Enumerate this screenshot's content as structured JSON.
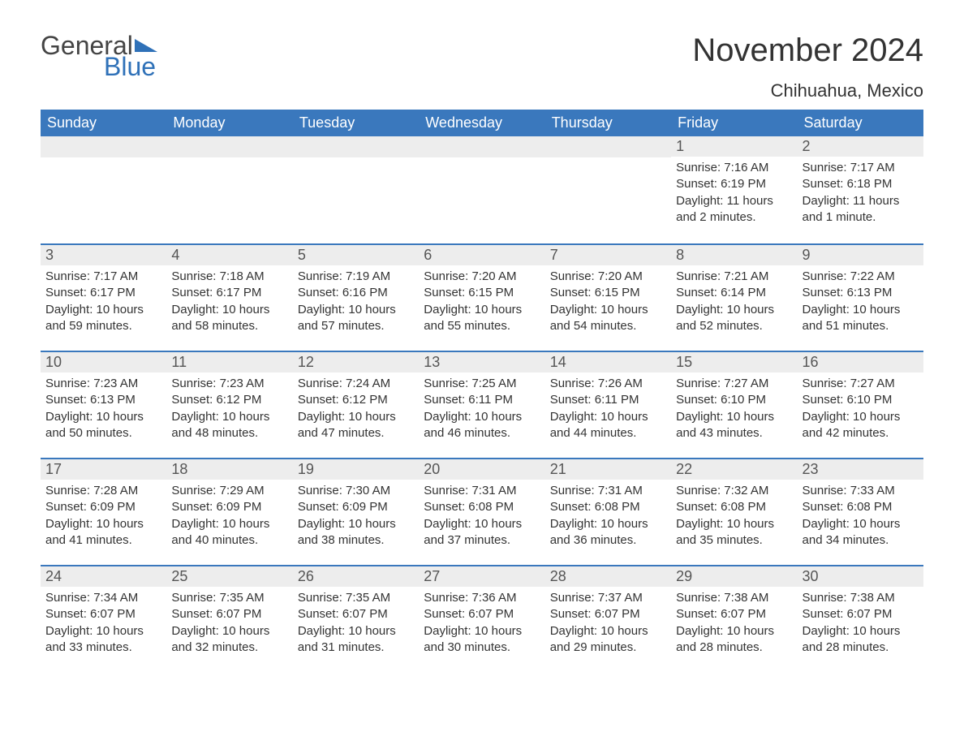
{
  "logo": {
    "general": "General",
    "blue": "Blue",
    "flag_color": "#2f71b8"
  },
  "title": "November 2024",
  "location": "Chihuahua, Mexico",
  "colors": {
    "header_bg": "#3a78bd",
    "header_text": "#ffffff",
    "row_stripe": "#ededed",
    "divider": "#3a78bd",
    "text": "#333333",
    "logo_gray": "#444444",
    "logo_blue": "#2f71b8",
    "page_bg": "#ffffff"
  },
  "weekdays": [
    "Sunday",
    "Monday",
    "Tuesday",
    "Wednesday",
    "Thursday",
    "Friday",
    "Saturday"
  ],
  "weeks": [
    [
      null,
      null,
      null,
      null,
      null,
      {
        "n": "1",
        "sunrise": "Sunrise: 7:16 AM",
        "sunset": "Sunset: 6:19 PM",
        "day": "Daylight: 11 hours and 2 minutes."
      },
      {
        "n": "2",
        "sunrise": "Sunrise: 7:17 AM",
        "sunset": "Sunset: 6:18 PM",
        "day": "Daylight: 11 hours and 1 minute."
      }
    ],
    [
      {
        "n": "3",
        "sunrise": "Sunrise: 7:17 AM",
        "sunset": "Sunset: 6:17 PM",
        "day": "Daylight: 10 hours and 59 minutes."
      },
      {
        "n": "4",
        "sunrise": "Sunrise: 7:18 AM",
        "sunset": "Sunset: 6:17 PM",
        "day": "Daylight: 10 hours and 58 minutes."
      },
      {
        "n": "5",
        "sunrise": "Sunrise: 7:19 AM",
        "sunset": "Sunset: 6:16 PM",
        "day": "Daylight: 10 hours and 57 minutes."
      },
      {
        "n": "6",
        "sunrise": "Sunrise: 7:20 AM",
        "sunset": "Sunset: 6:15 PM",
        "day": "Daylight: 10 hours and 55 minutes."
      },
      {
        "n": "7",
        "sunrise": "Sunrise: 7:20 AM",
        "sunset": "Sunset: 6:15 PM",
        "day": "Daylight: 10 hours and 54 minutes."
      },
      {
        "n": "8",
        "sunrise": "Sunrise: 7:21 AM",
        "sunset": "Sunset: 6:14 PM",
        "day": "Daylight: 10 hours and 52 minutes."
      },
      {
        "n": "9",
        "sunrise": "Sunrise: 7:22 AM",
        "sunset": "Sunset: 6:13 PM",
        "day": "Daylight: 10 hours and 51 minutes."
      }
    ],
    [
      {
        "n": "10",
        "sunrise": "Sunrise: 7:23 AM",
        "sunset": "Sunset: 6:13 PM",
        "day": "Daylight: 10 hours and 50 minutes."
      },
      {
        "n": "11",
        "sunrise": "Sunrise: 7:23 AM",
        "sunset": "Sunset: 6:12 PM",
        "day": "Daylight: 10 hours and 48 minutes."
      },
      {
        "n": "12",
        "sunrise": "Sunrise: 7:24 AM",
        "sunset": "Sunset: 6:12 PM",
        "day": "Daylight: 10 hours and 47 minutes."
      },
      {
        "n": "13",
        "sunrise": "Sunrise: 7:25 AM",
        "sunset": "Sunset: 6:11 PM",
        "day": "Daylight: 10 hours and 46 minutes."
      },
      {
        "n": "14",
        "sunrise": "Sunrise: 7:26 AM",
        "sunset": "Sunset: 6:11 PM",
        "day": "Daylight: 10 hours and 44 minutes."
      },
      {
        "n": "15",
        "sunrise": "Sunrise: 7:27 AM",
        "sunset": "Sunset: 6:10 PM",
        "day": "Daylight: 10 hours and 43 minutes."
      },
      {
        "n": "16",
        "sunrise": "Sunrise: 7:27 AM",
        "sunset": "Sunset: 6:10 PM",
        "day": "Daylight: 10 hours and 42 minutes."
      }
    ],
    [
      {
        "n": "17",
        "sunrise": "Sunrise: 7:28 AM",
        "sunset": "Sunset: 6:09 PM",
        "day": "Daylight: 10 hours and 41 minutes."
      },
      {
        "n": "18",
        "sunrise": "Sunrise: 7:29 AM",
        "sunset": "Sunset: 6:09 PM",
        "day": "Daylight: 10 hours and 40 minutes."
      },
      {
        "n": "19",
        "sunrise": "Sunrise: 7:30 AM",
        "sunset": "Sunset: 6:09 PM",
        "day": "Daylight: 10 hours and 38 minutes."
      },
      {
        "n": "20",
        "sunrise": "Sunrise: 7:31 AM",
        "sunset": "Sunset: 6:08 PM",
        "day": "Daylight: 10 hours and 37 minutes."
      },
      {
        "n": "21",
        "sunrise": "Sunrise: 7:31 AM",
        "sunset": "Sunset: 6:08 PM",
        "day": "Daylight: 10 hours and 36 minutes."
      },
      {
        "n": "22",
        "sunrise": "Sunrise: 7:32 AM",
        "sunset": "Sunset: 6:08 PM",
        "day": "Daylight: 10 hours and 35 minutes."
      },
      {
        "n": "23",
        "sunrise": "Sunrise: 7:33 AM",
        "sunset": "Sunset: 6:08 PM",
        "day": "Daylight: 10 hours and 34 minutes."
      }
    ],
    [
      {
        "n": "24",
        "sunrise": "Sunrise: 7:34 AM",
        "sunset": "Sunset: 6:07 PM",
        "day": "Daylight: 10 hours and 33 minutes."
      },
      {
        "n": "25",
        "sunrise": "Sunrise: 7:35 AM",
        "sunset": "Sunset: 6:07 PM",
        "day": "Daylight: 10 hours and 32 minutes."
      },
      {
        "n": "26",
        "sunrise": "Sunrise: 7:35 AM",
        "sunset": "Sunset: 6:07 PM",
        "day": "Daylight: 10 hours and 31 minutes."
      },
      {
        "n": "27",
        "sunrise": "Sunrise: 7:36 AM",
        "sunset": "Sunset: 6:07 PM",
        "day": "Daylight: 10 hours and 30 minutes."
      },
      {
        "n": "28",
        "sunrise": "Sunrise: 7:37 AM",
        "sunset": "Sunset: 6:07 PM",
        "day": "Daylight: 10 hours and 29 minutes."
      },
      {
        "n": "29",
        "sunrise": "Sunrise: 7:38 AM",
        "sunset": "Sunset: 6:07 PM",
        "day": "Daylight: 10 hours and 28 minutes."
      },
      {
        "n": "30",
        "sunrise": "Sunrise: 7:38 AM",
        "sunset": "Sunset: 6:07 PM",
        "day": "Daylight: 10 hours and 28 minutes."
      }
    ]
  ]
}
